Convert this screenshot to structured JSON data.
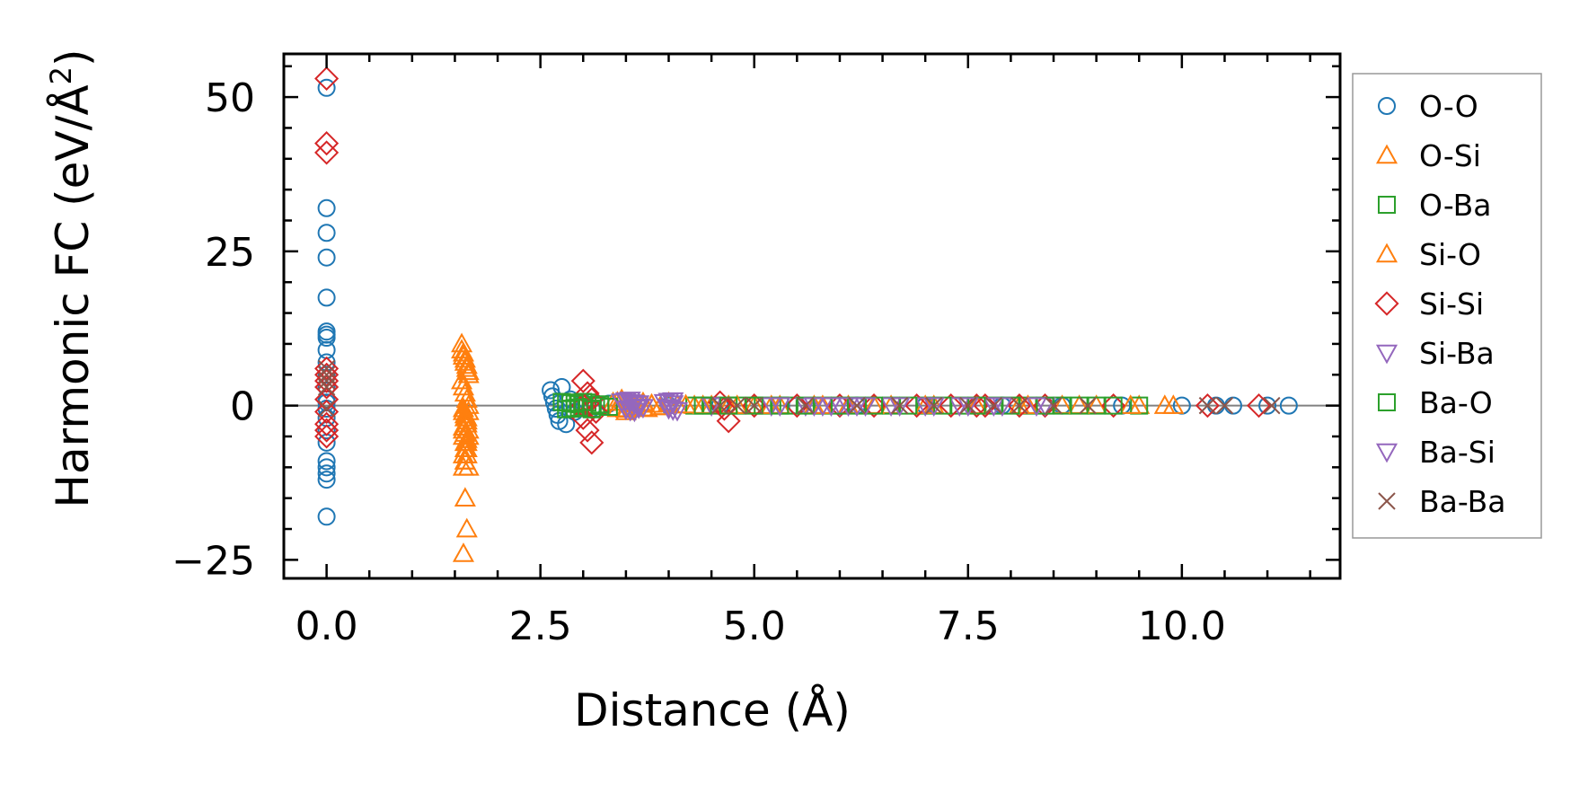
{
  "chart_data": {
    "type": "scatter",
    "xlabel": "Distance (Å)",
    "ylabel_main": "Harmonic FC (eV/Å",
    "ylabel_sup": "2",
    "ylabel_close": ")",
    "xlim": [
      -0.5,
      11.85
    ],
    "ylim": [
      -28,
      57
    ],
    "xticks": [
      0.0,
      2.5,
      5.0,
      7.5,
      10.0
    ],
    "xtick_labels": [
      "0.0",
      "2.5",
      "5.0",
      "7.5",
      "10.0"
    ],
    "yticks": [
      -25,
      0,
      25,
      50
    ],
    "ytick_labels": [
      "−25",
      "0",
      "25",
      "50"
    ],
    "zero_line": true,
    "legend_position": "outside-right",
    "series": [
      {
        "name": "O-O",
        "marker": "circle",
        "color": "#1f77b4",
        "x": [
          0,
          0,
          0,
          0,
          0,
          0,
          0,
          0,
          0,
          0,
          0,
          0,
          0,
          0,
          0,
          0,
          0,
          0,
          0,
          0,
          0,
          0,
          0,
          2.62,
          2.64,
          2.66,
          2.68,
          2.7,
          2.72,
          2.75,
          2.8,
          2.85,
          2.9,
          3.0,
          3.1,
          3.3,
          4.0,
          4.6,
          5.5,
          6.2,
          7.0,
          7.9,
          8.6,
          9.3,
          10.0,
          10.4,
          10.6,
          11.0,
          11.25
        ],
        "y": [
          51.5,
          32,
          28,
          24,
          17.5,
          12,
          11.5,
          11,
          9,
          7,
          5,
          3,
          1,
          -2,
          -4,
          -6,
          -9,
          -10,
          -11,
          -12,
          -18,
          0.5,
          -0.5,
          2.5,
          1.5,
          0.5,
          -0.5,
          -1.5,
          -2.5,
          3,
          -3,
          1,
          -1,
          0.5,
          -0.5,
          0.3,
          0,
          0,
          0,
          0,
          0,
          0,
          0,
          0,
          0,
          0,
          0,
          0,
          0
        ]
      },
      {
        "name": "O-Si",
        "marker": "triangle-up",
        "color": "#ff7f0e",
        "x": [
          1.58,
          1.6,
          1.62,
          1.64,
          1.66,
          1.58,
          1.6,
          1.62,
          1.64,
          1.66,
          1.6,
          1.62,
          1.64,
          1.66,
          1.6,
          1.62,
          1.64,
          1.6,
          1.62,
          1.66,
          1.6,
          1.62,
          1.64,
          1.62,
          1.64,
          1.66,
          1.6,
          1.62,
          1.64,
          1.66,
          1.62,
          1.64,
          1.6,
          3.35,
          3.4,
          3.45,
          3.5,
          3.55,
          3.6,
          3.7,
          3.75,
          3.8,
          3.9,
          4.0,
          4.1,
          4.3,
          4.5,
          4.7,
          5.0,
          5.3,
          5.7,
          6.1,
          6.6,
          7.1,
          7.6,
          8.1,
          8.6,
          9.0,
          9.5,
          9.9
        ],
        "y": [
          9,
          8,
          7,
          6,
          5,
          4,
          3,
          2,
          1,
          0,
          -1,
          -2,
          -3,
          -4,
          -5,
          -6,
          -7,
          -8,
          -9,
          -10,
          -10,
          -9,
          -8,
          -7,
          -6,
          -5,
          -4,
          -3,
          -2,
          -1,
          -15,
          -20,
          -24,
          0.5,
          -0.5,
          1,
          -1,
          0.3,
          -0.3,
          0.5,
          -0.5,
          0.2,
          -0.2,
          0.3,
          0.1,
          0,
          0,
          0,
          0,
          0,
          0,
          0,
          0,
          0,
          0,
          0,
          0,
          0,
          0,
          0
        ]
      },
      {
        "name": "O-Ba",
        "marker": "square",
        "color": "#2ca02c",
        "x": [
          2.75,
          2.8,
          2.85,
          2.9,
          2.95,
          3.0,
          3.05,
          3.1,
          3.15,
          3.2,
          4.3,
          4.5,
          4.8,
          5.1,
          5.4,
          5.8,
          6.2,
          6.6,
          7.0,
          7.4,
          7.8,
          8.2,
          8.6,
          9.0,
          9.5
        ],
        "y": [
          0.6,
          -0.6,
          0.4,
          -0.4,
          0.2,
          -0.2,
          0.5,
          -0.5,
          0.1,
          -0.1,
          0,
          0,
          0,
          0,
          0,
          0,
          0,
          0,
          0,
          0,
          0,
          0,
          0,
          0,
          0
        ]
      },
      {
        "name": "Si-O",
        "marker": "triangle-up",
        "color": "#ff7f0e",
        "x": [
          1.58,
          1.6,
          1.62,
          1.64,
          1.66,
          1.6,
          1.62,
          1.64,
          1.6,
          1.62,
          1.64,
          3.4,
          3.5,
          3.6,
          3.7,
          3.8,
          3.9,
          4.0,
          4.2,
          4.4,
          4.8,
          5.2,
          5.8,
          6.4,
          7.0,
          7.6,
          8.2,
          8.8,
          9.4,
          9.8
        ],
        "y": [
          10,
          8.5,
          7.5,
          6.5,
          5.5,
          -0.5,
          -1.5,
          -2.5,
          -3.5,
          -4.5,
          -5.5,
          0.6,
          -0.6,
          0.4,
          -0.4,
          0.2,
          -0.2,
          0.5,
          0.1,
          0,
          0,
          0,
          0,
          0,
          0,
          0,
          0,
          0,
          0,
          0
        ]
      },
      {
        "name": "Si-Si",
        "marker": "diamond",
        "color": "#d62728",
        "x": [
          0,
          0,
          0,
          0,
          0,
          0,
          0,
          0,
          0,
          0,
          0,
          0,
          3.0,
          3.05,
          3.1,
          3.0,
          3.05,
          3.1,
          3.15,
          3.0,
          4.6,
          4.65,
          4.7,
          5.0,
          5.5,
          6.0,
          6.4,
          6.9,
          7.3,
          7.6,
          7.7,
          8.1,
          8.4,
          9.2,
          10.3,
          10.9
        ],
        "y": [
          53,
          42.5,
          41,
          6,
          5,
          4,
          3,
          1,
          -1,
          -3,
          -4,
          -5,
          4,
          2,
          1,
          -2,
          -4,
          -6,
          -1,
          0,
          0.5,
          -0.5,
          -2.5,
          0,
          0,
          0,
          0,
          0,
          0,
          0,
          0,
          0,
          0,
          0,
          0,
          0
        ]
      },
      {
        "name": "Si-Ba",
        "marker": "triangle-down",
        "color": "#9467bd",
        "x": [
          3.5,
          3.55,
          3.6,
          3.65,
          3.5,
          3.55,
          3.6,
          3.65,
          4.0,
          4.05,
          4.0,
          4.05,
          4.5,
          5.2,
          5.6,
          5.8,
          6.0,
          6.2,
          6.6,
          7.0,
          7.4,
          7.8,
          8.4
        ],
        "y": [
          0.8,
          0.5,
          0.2,
          -0.2,
          -0.5,
          -0.8,
          0.4,
          -0.4,
          0.7,
          0.3,
          -0.3,
          -0.7,
          0,
          0,
          0,
          0,
          0,
          0,
          0,
          0,
          0,
          0,
          0
        ]
      },
      {
        "name": "Ba-O",
        "marker": "square",
        "color": "#2ca02c",
        "x": [
          2.8,
          2.85,
          2.9,
          2.95,
          3.0,
          3.1,
          3.2,
          3.3,
          4.4,
          4.7,
          5.0,
          5.3,
          5.6,
          6.0,
          6.4,
          6.8,
          7.2,
          7.6,
          8.0,
          8.4,
          8.8,
          9.2
        ],
        "y": [
          0.5,
          -0.5,
          0.3,
          -0.3,
          0.6,
          -0.6,
          0.2,
          -0.2,
          0,
          0,
          0,
          0,
          0,
          0,
          0,
          0,
          0,
          0,
          0,
          0,
          0,
          0
        ]
      },
      {
        "name": "Ba-Si",
        "marker": "triangle-down",
        "color": "#9467bd",
        "x": [
          3.45,
          3.5,
          3.55,
          3.6,
          3.65,
          3.7,
          3.95,
          4.0,
          4.05,
          4.1,
          5.3,
          5.7,
          5.9,
          6.1,
          6.3,
          6.7,
          7.1,
          7.5,
          7.9,
          8.3
        ],
        "y": [
          0.6,
          -0.6,
          0.9,
          -0.9,
          0.3,
          -0.3,
          0.5,
          -0.5,
          0.8,
          -0.8,
          0,
          0,
          0,
          0,
          0,
          0,
          0,
          0,
          0,
          0
        ]
      },
      {
        "name": "Ba-Ba",
        "marker": "x",
        "color": "#8c564b",
        "x": [
          0,
          0,
          0,
          0,
          0,
          4.6,
          4.8,
          5.0,
          5.6,
          6.2,
          6.7,
          7.1,
          7.5,
          7.8,
          8.1,
          8.5,
          8.9,
          10.3,
          10.5,
          11.05
        ],
        "y": [
          6,
          5,
          4,
          3,
          -0.5,
          0,
          0,
          0,
          0,
          0,
          0,
          0,
          0,
          0,
          0,
          0,
          0,
          0,
          0,
          0
        ]
      }
    ]
  }
}
